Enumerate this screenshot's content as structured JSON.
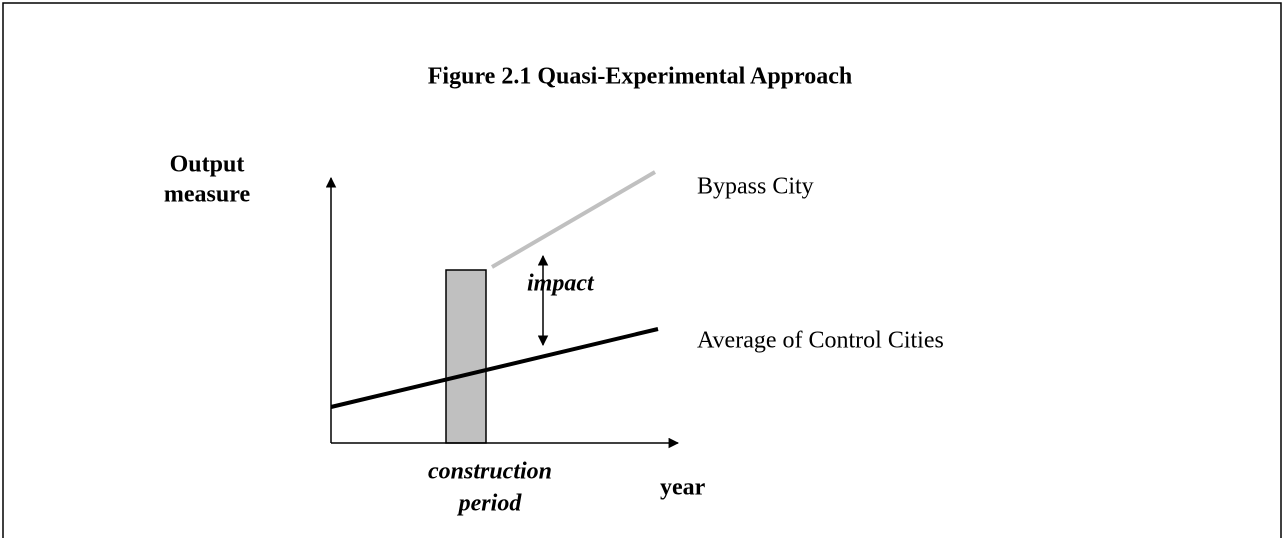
{
  "figure": {
    "title": "Figure 2.1  Quasi-Experimental Approach",
    "y_axis_label": [
      "Output",
      "measure"
    ],
    "x_axis_label": "year",
    "period_label": [
      "construction",
      "period"
    ],
    "impact_label": "impact",
    "lines": [
      "Bypass City",
      "Average of Control Cities"
    ]
  }
}
